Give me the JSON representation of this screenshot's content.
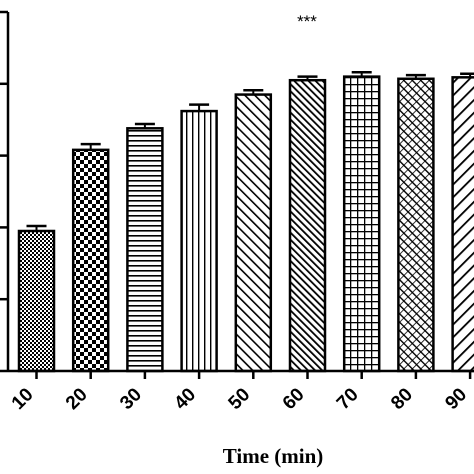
{
  "chart_data": {
    "type": "bar",
    "title": "",
    "xlabel": "Time (min)",
    "ylabel": "",
    "categories": [
      "10",
      "20",
      "30",
      "40",
      "50",
      "60",
      "70",
      "80",
      "90"
    ],
    "values": [
      19.5,
      30.8,
      33.8,
      36.2,
      38.5,
      40.5,
      41.0,
      40.7,
      40.9
    ],
    "errors": [
      0.7,
      0.8,
      0.6,
      0.9,
      0.6,
      0.5,
      0.6,
      0.5,
      0.5
    ],
    "patterns": [
      "checker-fine",
      "checker",
      "horizontal-lines",
      "vertical-lines",
      "diagonal-up",
      "diagonal-up-dense",
      "grid",
      "diagonal-cross-hatch",
      "diagonal-down"
    ],
    "ylim": [
      0,
      50
    ],
    "yticks": [
      0,
      10,
      20,
      30,
      40,
      50
    ],
    "y_tick_labels_visible": false,
    "annotation": "***",
    "grid": false,
    "legend": "none"
  }
}
